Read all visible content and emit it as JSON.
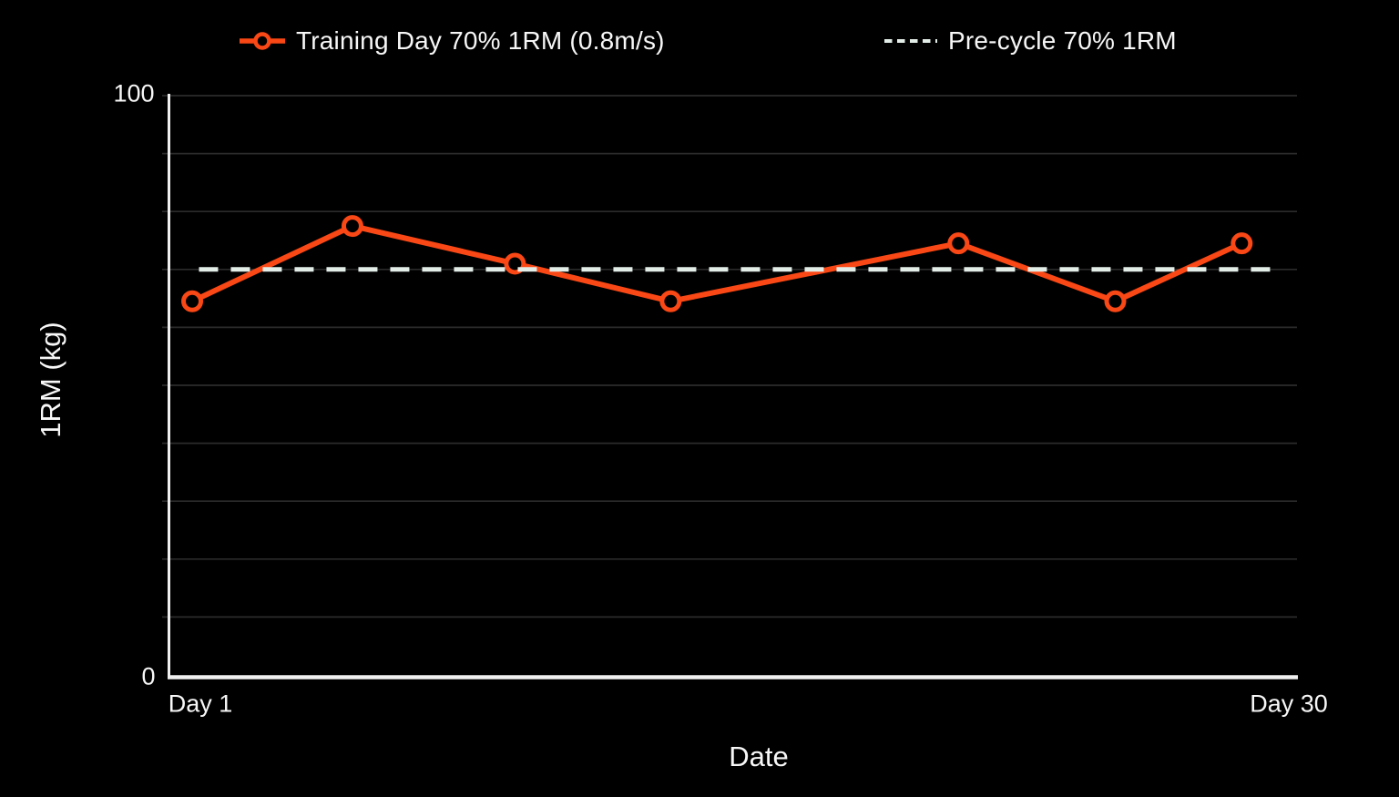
{
  "page": {
    "background_color": "#000000",
    "text_color": "#F7F7F7"
  },
  "legend": {
    "position": "top",
    "items": [
      {
        "label": "Training Day 70% 1RM (0.8m/s)",
        "marker": "line-with-open-circle",
        "color": "#F94715"
      },
      {
        "label": "Pre-cycle 70% 1RM",
        "marker": "dashed-line",
        "color": "#E3EDE8"
      }
    ]
  },
  "chart_data": {
    "type": "line",
    "title": "",
    "xlabel": "Date",
    "ylabel": "1RM (kg)",
    "ylim": [
      0,
      100
    ],
    "y_gridline_step": 10,
    "grid": "horizontal gridlines every 10 units, dark gray on black",
    "legend_position": "top",
    "x_tick_labels": [
      "Day 1",
      "Day 30"
    ],
    "y_tick_labels": [
      "0",
      "100"
    ],
    "axis_color": "#F0F0F0",
    "gridline_color": "#2B2B2B",
    "series": [
      {
        "name": "Training Day 70% 1RM (0.8m/s)",
        "type": "line+markers",
        "marker": "open-circle",
        "color": "#F94715",
        "x_frac": [
          0.021,
          0.163,
          0.307,
          0.445,
          0.7,
          0.839,
          0.951
        ],
        "values": [
          64.5,
          77.5,
          71,
          64.5,
          74.5,
          64.5,
          74.5
        ]
      },
      {
        "name": "Pre-cycle 70% 1RM",
        "type": "reference-line",
        "style": "dashed",
        "color": "#E3EDE8",
        "value": 70,
        "x_frac_start": 0.027,
        "x_frac_end": 0.984
      }
    ]
  }
}
